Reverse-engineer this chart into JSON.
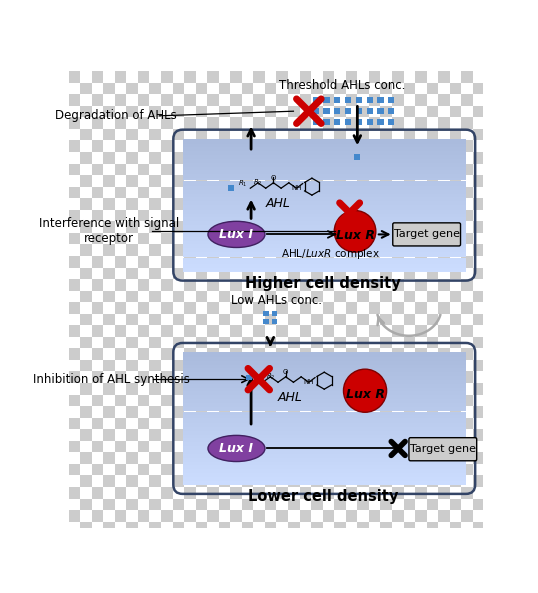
{
  "checker_colors": [
    "#cccccc",
    "#ffffff"
  ],
  "cell_face": "#aabbdd",
  "cell_edge": "#334466",
  "luxi_color": "#8040a0",
  "luxi_edge": "#402060",
  "luxr_color": "#cc0000",
  "luxr_edge": "#800000",
  "ahl_dot_color": "#4488cc",
  "cross_color": "#cc0000",
  "tg_color": "#cccccc",
  "label_threshold": "Threshold AHLs conc.",
  "label_degradation": "Degradation of AHLs",
  "label_interference": "Interference with signal\nreceptor",
  "label_inhibition": "Inhibition of AHL synthesis",
  "label_low_ahls": "Low AHLs conc.",
  "label_higher": "Higher cell density",
  "label_lower": "Lower cell density",
  "label_ahl": "AHL",
  "label_luxi": "Lux I",
  "label_luxr": "Lux R",
  "label_target": "Target gene",
  "label_complex": "AHL/LuxR complex"
}
